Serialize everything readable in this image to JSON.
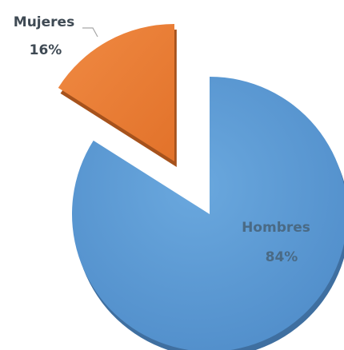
{
  "chart_data": {
    "type": "pie",
    "title": "",
    "exploded": true,
    "slices": [
      {
        "label": "Hombres",
        "value": 84,
        "percent_label": "84%",
        "color": "#5B9BD5",
        "side_color": "#3F6FA0",
        "label_color": "#4A6A85"
      },
      {
        "label": "Mujeres",
        "value": 16,
        "percent_label": "16%",
        "color": "#ED7D31",
        "side_color": "#A6521C",
        "label_color": "#3F4A54"
      }
    ]
  }
}
